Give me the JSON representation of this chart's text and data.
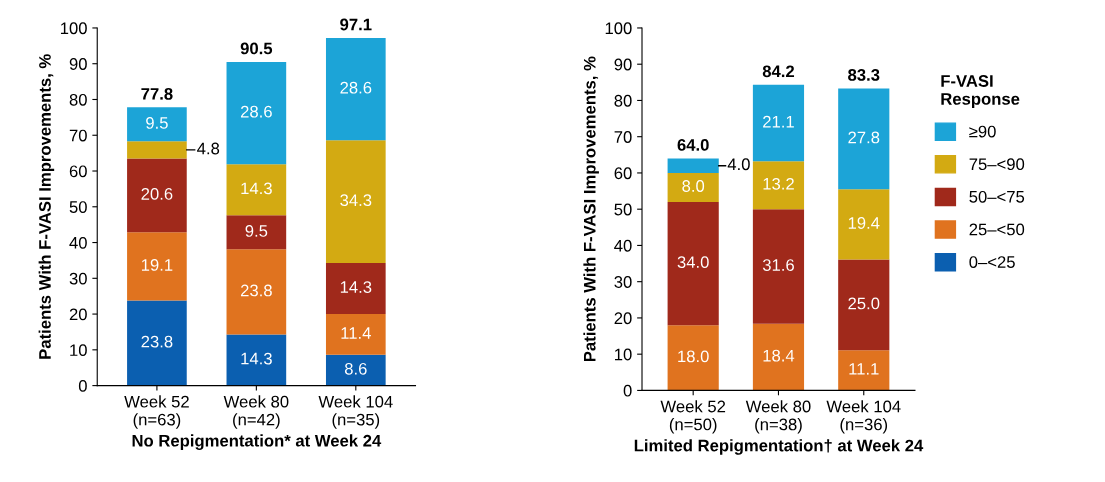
{
  "chart_data": [
    {
      "type": "bar",
      "stacked": true,
      "xlabel": "No Repigmentation* at Week 24",
      "ylabel": "Patients With F-VASI Improvements, %",
      "categories": [
        "Week 52\n(n=63)",
        "Week 80\n(n=42)",
        "Week 104\n(n=35)"
      ],
      "ylim": [
        0,
        100
      ],
      "yticks": [
        0,
        10,
        20,
        30,
        40,
        50,
        60,
        70,
        80,
        90,
        100
      ],
      "grid": false,
      "series": [
        {
          "color": "#0b5fb0",
          "values": [
            23.8,
            14.3,
            8.6
          ],
          "value_labels": [
            "23.8",
            "14.3",
            "8.6"
          ]
        },
        {
          "color": "#e0731f",
          "values": [
            19.1,
            23.8,
            11.4
          ],
          "value_labels": [
            "19.1",
            "23.8",
            "11.4"
          ]
        },
        {
          "color": "#a0291b",
          "values": [
            20.6,
            9.5,
            14.3
          ],
          "value_labels": [
            "20.6",
            "9.5",
            "14.3"
          ]
        },
        {
          "color": "#d3aa12",
          "values": [
            4.8,
            14.3,
            34.3
          ],
          "value_labels": [
            "4.8",
            "14.3",
            "34.3"
          ]
        },
        {
          "color": "#1ca4d7",
          "values": [
            9.5,
            28.6,
            28.6
          ],
          "value_labels": [
            "9.5",
            "28.6",
            "28.6"
          ]
        }
      ],
      "totals": [
        "77.8",
        "90.5",
        "97.1"
      ]
    },
    {
      "type": "bar",
      "stacked": true,
      "xlabel": "Limited Repigmentation† at Week 24",
      "ylabel": "Patients With F-VASI Improvements, %",
      "categories": [
        "Week 52\n(n=50)",
        "Week 80\n(n=38)",
        "Week 104\n(n=36)"
      ],
      "ylim": [
        0,
        100
      ],
      "yticks": [
        0,
        10,
        20,
        30,
        40,
        50,
        60,
        70,
        80,
        90,
        100
      ],
      "grid": false,
      "legend": "right",
      "legend_title": "F-VASI\nResponse",
      "series": [
        {
          "name": "0–<25",
          "color": "#0b5fb0",
          "values": [
            null,
            null,
            null
          ],
          "value_labels": [
            null,
            null,
            null
          ]
        },
        {
          "name": "25–<50",
          "color": "#e0731f",
          "values": [
            18.0,
            18.4,
            11.1
          ],
          "value_labels": [
            "18.0",
            "18.4",
            "11.1"
          ]
        },
        {
          "name": "50–<75",
          "color": "#a0291b",
          "values": [
            34.0,
            31.6,
            25.0
          ],
          "value_labels": [
            "34.0",
            "31.6",
            "25.0"
          ]
        },
        {
          "name": "75–<90",
          "color": "#d3aa12",
          "values": [
            8.0,
            13.2,
            19.4
          ],
          "value_labels": [
            "8.0",
            "13.2",
            "19.4"
          ]
        },
        {
          "name": "≥90",
          "color": "#1ca4d7",
          "values": [
            4.0,
            21.1,
            27.8
          ],
          "value_labels": [
            "4.0",
            "21.1",
            "27.8"
          ]
        }
      ],
      "totals": [
        "64.0",
        "84.2",
        "83.3"
      ]
    }
  ]
}
